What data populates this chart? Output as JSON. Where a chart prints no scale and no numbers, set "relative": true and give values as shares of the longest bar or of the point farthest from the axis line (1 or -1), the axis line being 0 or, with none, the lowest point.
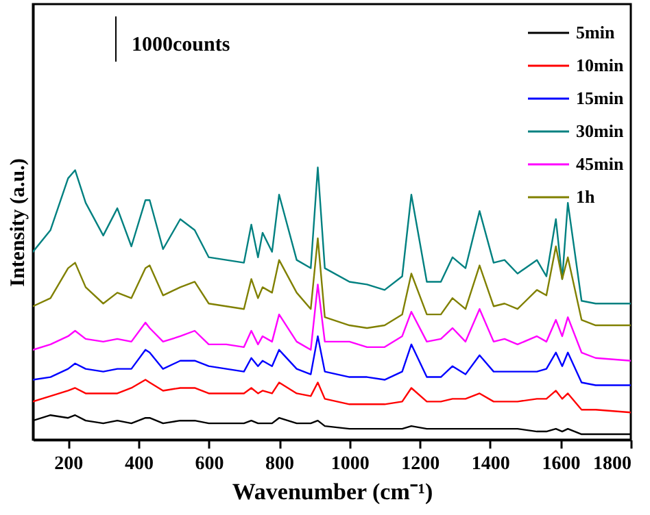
{
  "chart_data": {
    "type": "line",
    "relative": true,
    "xlabel": "Wavenumber (cm⁻¹)",
    "ylabel": "Intensity (a.u.)",
    "annotations": [
      "1000counts"
    ],
    "legend": "top right",
    "line_style": "solid",
    "xlim": [
      100,
      1800
    ],
    "xticks": [
      200,
      400,
      600,
      800,
      1000,
      1200,
      1400,
      1600,
      1800
    ],
    "x": [
      100,
      150,
      200,
      220,
      250,
      300,
      340,
      380,
      420,
      432,
      470,
      519,
      560,
      600,
      650,
      700,
      721,
      740,
      753,
      780,
      800,
      850,
      890,
      910,
      930,
      1000,
      1050,
      1100,
      1150,
      1176,
      1220,
      1260,
      1293,
      1330,
      1370,
      1410,
      1441,
      1478,
      1533,
      1560,
      1587,
      1605,
      1621,
      1660,
      1700,
      1800
    ],
    "series": [
      {
        "name": "5min",
        "color": "#000000",
        "values": [
          0.07,
          0.09,
          0.08,
          0.09,
          0.07,
          0.06,
          0.07,
          0.06,
          0.08,
          0.08,
          0.06,
          0.07,
          0.07,
          0.06,
          0.06,
          0.06,
          0.07,
          0.06,
          0.06,
          0.06,
          0.08,
          0.06,
          0.06,
          0.07,
          0.05,
          0.04,
          0.04,
          0.04,
          0.04,
          0.05,
          0.04,
          0.04,
          0.04,
          0.04,
          0.04,
          0.04,
          0.04,
          0.04,
          0.03,
          0.03,
          0.04,
          0.03,
          0.04,
          0.02,
          0.02,
          0.02
        ]
      },
      {
        "name": "10min",
        "color": "#ff0000",
        "values": [
          0.14,
          0.16,
          0.18,
          0.19,
          0.17,
          0.17,
          0.17,
          0.19,
          0.22,
          0.21,
          0.18,
          0.19,
          0.19,
          0.17,
          0.17,
          0.17,
          0.19,
          0.17,
          0.18,
          0.17,
          0.21,
          0.17,
          0.16,
          0.21,
          0.15,
          0.13,
          0.13,
          0.13,
          0.14,
          0.19,
          0.14,
          0.14,
          0.15,
          0.15,
          0.17,
          0.14,
          0.14,
          0.14,
          0.15,
          0.15,
          0.18,
          0.15,
          0.17,
          0.11,
          0.11,
          0.1
        ]
      },
      {
        "name": "15min",
        "color": "#0000ff",
        "values": [
          0.22,
          0.23,
          0.26,
          0.28,
          0.26,
          0.25,
          0.26,
          0.26,
          0.33,
          0.32,
          0.26,
          0.29,
          0.29,
          0.27,
          0.26,
          0.25,
          0.3,
          0.27,
          0.29,
          0.27,
          0.33,
          0.26,
          0.24,
          0.38,
          0.25,
          0.23,
          0.23,
          0.22,
          0.25,
          0.35,
          0.23,
          0.23,
          0.27,
          0.24,
          0.31,
          0.25,
          0.25,
          0.25,
          0.25,
          0.26,
          0.32,
          0.27,
          0.32,
          0.21,
          0.2,
          0.2
        ]
      },
      {
        "name": "30min",
        "color": "#008080",
        "values": [
          0.69,
          0.77,
          0.96,
          0.99,
          0.87,
          0.75,
          0.85,
          0.71,
          0.88,
          0.88,
          0.7,
          0.81,
          0.77,
          0.67,
          0.66,
          0.65,
          0.79,
          0.67,
          0.76,
          0.69,
          0.9,
          0.66,
          0.63,
          1,
          0.63,
          0.58,
          0.57,
          0.55,
          0.6,
          0.9,
          0.58,
          0.58,
          0.67,
          0.63,
          0.84,
          0.65,
          0.66,
          0.61,
          0.66,
          0.6,
          0.81,
          0.59,
          0.87,
          0.51,
          0.5,
          0.5
        ]
      },
      {
        "name": "45min",
        "color": "#ff00ff",
        "values": [
          0.33,
          0.35,
          0.38,
          0.4,
          0.37,
          0.36,
          0.37,
          0.36,
          0.43,
          0.41,
          0.36,
          0.38,
          0.4,
          0.35,
          0.35,
          0.34,
          0.4,
          0.35,
          0.38,
          0.36,
          0.46,
          0.36,
          0.33,
          0.57,
          0.36,
          0.36,
          0.34,
          0.34,
          0.38,
          0.47,
          0.36,
          0.37,
          0.41,
          0.36,
          0.48,
          0.36,
          0.37,
          0.35,
          0.38,
          0.36,
          0.44,
          0.38,
          0.45,
          0.32,
          0.3,
          0.29
        ]
      },
      {
        "name": "1h",
        "color": "#808000",
        "values": [
          0.49,
          0.52,
          0.63,
          0.65,
          0.56,
          0.5,
          0.54,
          0.52,
          0.63,
          0.64,
          0.53,
          0.56,
          0.58,
          0.5,
          0.49,
          0.48,
          0.59,
          0.52,
          0.56,
          0.54,
          0.66,
          0.54,
          0.48,
          0.74,
          0.45,
          0.42,
          0.41,
          0.42,
          0.46,
          0.61,
          0.46,
          0.46,
          0.52,
          0.48,
          0.64,
          0.49,
          0.5,
          0.48,
          0.55,
          0.53,
          0.71,
          0.59,
          0.67,
          0.44,
          0.42,
          0.42
        ]
      }
    ]
  }
}
